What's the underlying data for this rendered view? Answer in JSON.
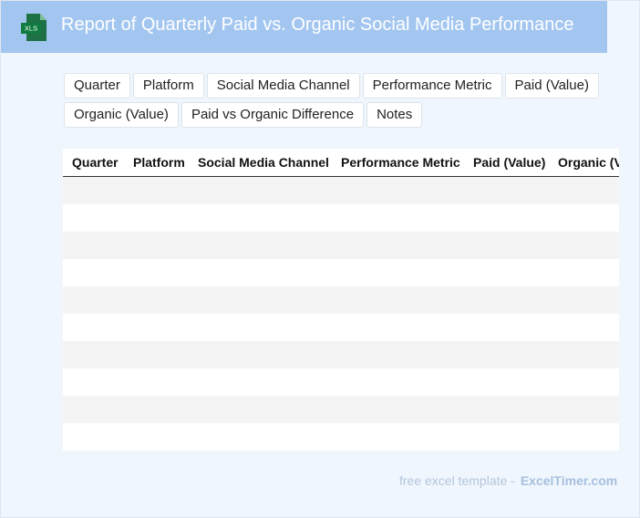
{
  "header": {
    "icon_label": "XLS",
    "title": "Report of Quarterly Paid vs. Organic Social Media Performance"
  },
  "chips": [
    "Quarter",
    "Platform",
    "Social Media Channel",
    "Performance Metric",
    "Paid (Value)",
    "Organic (Value)",
    "Paid vs Organic Difference",
    "Notes"
  ],
  "table": {
    "columns": [
      "Quarter",
      "Platform",
      "Social Media Channel",
      "Performance Metric",
      "Paid (Value)",
      "Organic (Value)"
    ]
  },
  "footer": {
    "text": "free excel template -",
    "link": "ExcelTimer.com"
  }
}
